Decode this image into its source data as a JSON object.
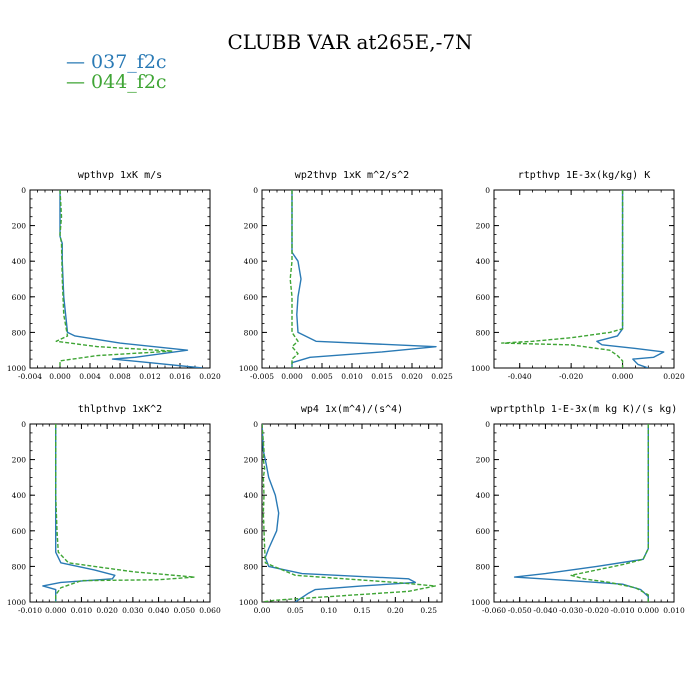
{
  "figure": {
    "title": "CLUBB VAR at265E,-7N",
    "legend": [
      {
        "label": "— 037_f2c",
        "color": "#2a7ab5"
      },
      {
        "label": "— 044_f2c",
        "color": "#3fa535"
      }
    ]
  },
  "colors": {
    "series_037": "#2a7ab5",
    "series_044": "#3fa535"
  },
  "chart_data": [
    {
      "type": "line",
      "title": "wpthvp  1xK m/s",
      "xlim": [
        -0.004,
        0.02
      ],
      "ylim": [
        1000,
        0
      ],
      "xticks": [
        "-0.004",
        "0.000",
        "0.004",
        "0.008",
        "0.012",
        "0.016",
        "0.020"
      ],
      "xtick_values": [
        -0.004,
        0.0,
        0.004,
        0.008,
        0.012,
        0.016,
        0.02
      ],
      "yticks": [
        "0",
        "200",
        "400",
        "600",
        "800",
        "1000"
      ],
      "ytick_values": [
        0,
        200,
        400,
        600,
        800,
        1000
      ],
      "series": [
        {
          "name": "037_f2c",
          "style": "solid",
          "points": [
            [
              0.0,
              0
            ],
            [
              0.0,
              100
            ],
            [
              0.0,
              200
            ],
            [
              0.0,
              260
            ],
            [
              0.0003,
              300
            ],
            [
              0.0003,
              400
            ],
            [
              0.0005,
              600
            ],
            [
              0.001,
              800
            ],
            [
              0.002,
              820
            ],
            [
              0.008,
              860
            ],
            [
              0.017,
              900
            ],
            [
              0.01,
              940
            ],
            [
              0.007,
              950
            ],
            [
              0.012,
              970
            ],
            [
              0.019,
              1000
            ]
          ]
        },
        {
          "name": "044_f2c",
          "style": "dashed",
          "points": [
            [
              0.0,
              0
            ],
            [
              0.0002,
              150
            ],
            [
              0.0,
              250
            ],
            [
              0.0002,
              300
            ],
            [
              0.0003,
              500
            ],
            [
              0.0005,
              700
            ],
            [
              0.001,
              820
            ],
            [
              -0.0005,
              850
            ],
            [
              0.005,
              880
            ],
            [
              0.015,
              905
            ],
            [
              0.005,
              930
            ],
            [
              0.0,
              960
            ],
            [
              0.0,
              1000
            ]
          ]
        }
      ]
    },
    {
      "type": "line",
      "title": "wp2thvp  1xK m^2/s^2",
      "xlim": [
        -0.005,
        0.025
      ],
      "ylim": [
        1000,
        0
      ],
      "xticks": [
        "-0.005",
        "0.000",
        "0.005",
        "0.010",
        "0.015",
        "0.020",
        "0.025"
      ],
      "xtick_values": [
        -0.005,
        0.0,
        0.005,
        0.01,
        0.015,
        0.02,
        0.025
      ],
      "yticks": [
        "0",
        "200",
        "400",
        "600",
        "800",
        "1000"
      ],
      "ytick_values": [
        0,
        200,
        400,
        600,
        800,
        1000
      ],
      "series": [
        {
          "name": "037_f2c",
          "style": "solid",
          "points": [
            [
              0.0,
              0
            ],
            [
              0.0,
              350
            ],
            [
              0.001,
              400
            ],
            [
              0.0015,
              500
            ],
            [
              0.001,
              600
            ],
            [
              0.0008,
              700
            ],
            [
              0.001,
              800
            ],
            [
              0.004,
              850
            ],
            [
              0.024,
              880
            ],
            [
              0.015,
              910
            ],
            [
              0.003,
              940
            ],
            [
              0.0,
              970
            ],
            [
              0.0,
              1000
            ]
          ]
        },
        {
          "name": "044_f2c",
          "style": "dashed",
          "points": [
            [
              0.0,
              0
            ],
            [
              0.0,
              400
            ],
            [
              -0.0003,
              500
            ],
            [
              0.0,
              600
            ],
            [
              0.0,
              800
            ],
            [
              0.001,
              850
            ],
            [
              0.0,
              880
            ],
            [
              0.001,
              920
            ],
            [
              0.0,
              950
            ],
            [
              0.0,
              1000
            ]
          ]
        }
      ]
    },
    {
      "type": "line",
      "title": "rtpthvp  1E-3x(kg/kg) K",
      "xlim": [
        -0.05,
        0.02
      ],
      "ylim": [
        1000,
        0
      ],
      "xticks": [
        "-0.040",
        "-0.020",
        "0.000",
        "0.020"
      ],
      "xtick_values": [
        -0.04,
        -0.02,
        0.0,
        0.02
      ],
      "yticks": [
        "0",
        "200",
        "400",
        "600",
        "800",
        "1000"
      ],
      "ytick_values": [
        0,
        200,
        400,
        600,
        800,
        1000
      ],
      "series": [
        {
          "name": "037_f2c",
          "style": "solid",
          "points": [
            [
              0.0,
              0
            ],
            [
              0.0,
              600
            ],
            [
              0.0,
              780
            ],
            [
              -0.002,
              820
            ],
            [
              -0.01,
              850
            ],
            [
              -0.008,
              870
            ],
            [
              0.005,
              890
            ],
            [
              0.016,
              910
            ],
            [
              0.012,
              940
            ],
            [
              0.004,
              950
            ],
            [
              0.006,
              980
            ],
            [
              0.01,
              1000
            ]
          ]
        },
        {
          "name": "044_f2c",
          "style": "dashed",
          "points": [
            [
              0.0,
              0
            ],
            [
              0.0,
              600
            ],
            [
              0.0,
              780
            ],
            [
              -0.005,
              800
            ],
            [
              -0.02,
              830
            ],
            [
              -0.035,
              850
            ],
            [
              -0.047,
              860
            ],
            [
              -0.02,
              870
            ],
            [
              -0.005,
              900
            ],
            [
              -0.002,
              930
            ],
            [
              0.0,
              960
            ],
            [
              0.0,
              1000
            ]
          ]
        }
      ]
    },
    {
      "type": "line",
      "title": "thlpthvp  1xK^2",
      "xlim": [
        -0.01,
        0.06
      ],
      "ylim": [
        1000,
        0
      ],
      "xticks": [
        "-0.010",
        "0.000",
        "0.010",
        "0.020",
        "0.030",
        "0.040",
        "0.050",
        "0.060"
      ],
      "xtick_values": [
        -0.01,
        0.0,
        0.01,
        0.02,
        0.03,
        0.04,
        0.05,
        0.06
      ],
      "yticks": [
        "0",
        "200",
        "400",
        "600",
        "800",
        "1000"
      ],
      "ytick_values": [
        0,
        200,
        400,
        600,
        800,
        1000
      ],
      "series": [
        {
          "name": "037_f2c",
          "style": "solid",
          "points": [
            [
              0.0,
              0
            ],
            [
              0.0,
              400
            ],
            [
              0.0,
              600
            ],
            [
              0.0,
              720
            ],
            [
              0.002,
              780
            ],
            [
              0.015,
              820
            ],
            [
              0.023,
              850
            ],
            [
              0.022,
              870
            ],
            [
              0.002,
              890
            ],
            [
              -0.005,
              910
            ],
            [
              0.0,
              930
            ],
            [
              0.0,
              960
            ],
            [
              0.0,
              1000
            ]
          ]
        },
        {
          "name": "044_f2c",
          "style": "dashed",
          "points": [
            [
              0.0,
              0
            ],
            [
              0.0,
              400
            ],
            [
              0.0005,
              600
            ],
            [
              0.001,
              720
            ],
            [
              0.005,
              780
            ],
            [
              0.02,
              810
            ],
            [
              0.03,
              830
            ],
            [
              0.054,
              860
            ],
            [
              0.04,
              875
            ],
            [
              0.01,
              880
            ],
            [
              0.002,
              920
            ],
            [
              0.0,
              960
            ],
            [
              0.0,
              1000
            ]
          ]
        }
      ]
    },
    {
      "type": "line",
      "title": "wp4  1x(m^4)/(s^4)",
      "xlim": [
        0.0,
        0.27
      ],
      "ylim": [
        1000,
        0
      ],
      "xticks": [
        "0.00",
        "0.05",
        "0.10",
        "0.15",
        "0.20",
        "0.25"
      ],
      "xtick_values": [
        0.0,
        0.05,
        0.1,
        0.15,
        0.2,
        0.25
      ],
      "yticks": [
        "0",
        "200",
        "400",
        "600",
        "800",
        "1000"
      ],
      "ytick_values": [
        0,
        200,
        400,
        600,
        800,
        1000
      ],
      "series": [
        {
          "name": "037_f2c",
          "style": "solid",
          "points": [
            [
              0.0,
              0
            ],
            [
              0.002,
              150
            ],
            [
              0.006,
              220
            ],
            [
              0.01,
              300
            ],
            [
              0.02,
              400
            ],
            [
              0.025,
              500
            ],
            [
              0.022,
              600
            ],
            [
              0.01,
              700
            ],
            [
              0.005,
              750
            ],
            [
              0.01,
              800
            ],
            [
              0.06,
              840
            ],
            [
              0.22,
              870
            ],
            [
              0.23,
              890
            ],
            [
              0.15,
              910
            ],
            [
              0.08,
              930
            ],
            [
              0.07,
              950
            ],
            [
              0.05,
              1000
            ]
          ]
        },
        {
          "name": "044_f2c",
          "style": "dashed",
          "points": [
            [
              0.0,
              0
            ],
            [
              0.003,
              150
            ],
            [
              0.002,
              200
            ],
            [
              0.004,
              250
            ],
            [
              0.002,
              300
            ],
            [
              0.003,
              400
            ],
            [
              0.002,
              500
            ],
            [
              0.003,
              600
            ],
            [
              0.004,
              700
            ],
            [
              0.005,
              780
            ],
            [
              0.05,
              850
            ],
            [
              0.2,
              890
            ],
            [
              0.26,
              910
            ],
            [
              0.22,
              940
            ],
            [
              0.1,
              970
            ],
            [
              0.02,
              990
            ],
            [
              0.0,
              1000
            ]
          ]
        }
      ]
    },
    {
      "type": "line",
      "title": "wprtpthlp  1-E-3x(m kg K)/(s kg)",
      "xlim": [
        -0.06,
        0.01
      ],
      "ylim": [
        1000,
        0
      ],
      "xticks": [
        "-0.060",
        "-0.050",
        "-0.040",
        "-0.030",
        "-0.020",
        "-0.010",
        "0.000",
        "0.010"
      ],
      "xtick_values": [
        -0.06,
        -0.05,
        -0.04,
        -0.03,
        -0.02,
        -0.01,
        0.0,
        0.01
      ],
      "yticks": [
        "0",
        "200",
        "400",
        "600",
        "800",
        "1000"
      ],
      "ytick_values": [
        0,
        200,
        400,
        600,
        800,
        1000
      ],
      "series": [
        {
          "name": "037_f2c",
          "style": "solid",
          "points": [
            [
              0.0,
              0
            ],
            [
              0.0,
              500
            ],
            [
              0.0,
              700
            ],
            [
              -0.002,
              760
            ],
            [
              -0.02,
              800
            ],
            [
              -0.04,
              840
            ],
            [
              -0.052,
              860
            ],
            [
              -0.03,
              880
            ],
            [
              -0.01,
              900
            ],
            [
              -0.003,
              930
            ],
            [
              0.0,
              970
            ],
            [
              0.0,
              1000
            ]
          ]
        },
        {
          "name": "044_f2c",
          "style": "dashed",
          "points": [
            [
              0.0,
              0
            ],
            [
              0.0,
              500
            ],
            [
              0.0,
              700
            ],
            [
              -0.002,
              760
            ],
            [
              -0.01,
              790
            ],
            [
              -0.02,
              820
            ],
            [
              -0.03,
              850
            ],
            [
              -0.025,
              870
            ],
            [
              -0.015,
              890
            ],
            [
              -0.005,
              920
            ],
            [
              0.0,
              960
            ],
            [
              0.0,
              1000
            ]
          ]
        }
      ]
    }
  ]
}
